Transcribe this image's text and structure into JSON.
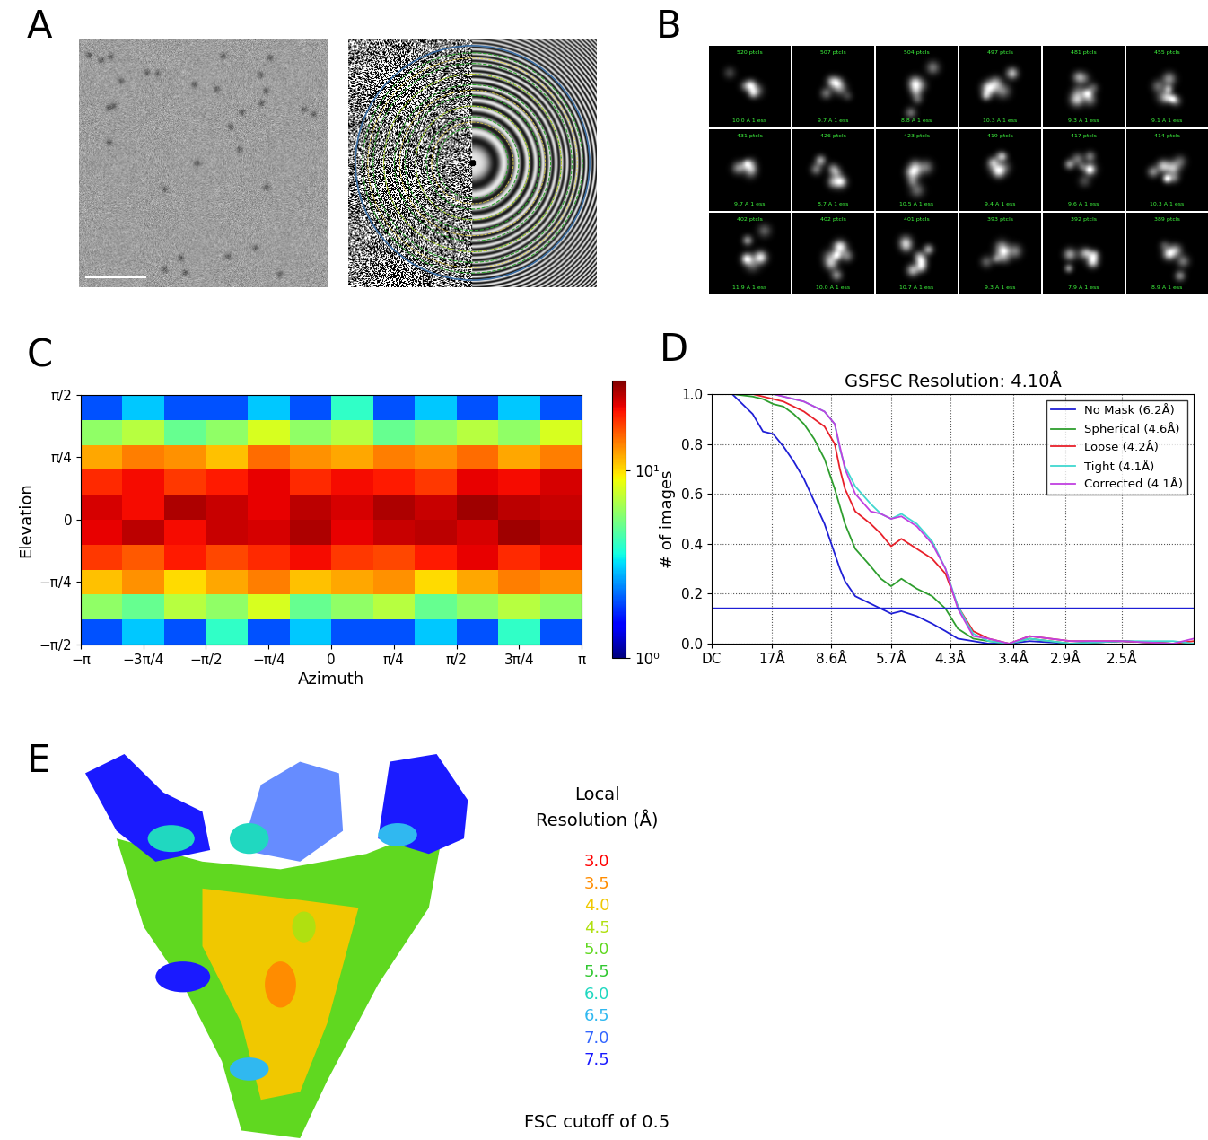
{
  "panel_labels": [
    "A",
    "B",
    "C",
    "D",
    "E"
  ],
  "class_averages": {
    "particles": [
      "520 ptcls",
      "507 ptcls",
      "504 ptcls",
      "497 ptcls",
      "481 ptcls",
      "455 ptcls",
      "431 ptcls",
      "426 ptcls",
      "423 ptcls",
      "419 ptcls",
      "417 ptcls",
      "414 ptcls",
      "402 ptcls",
      "402 ptcls",
      "401 ptcls",
      "393 ptcls",
      "392 ptcls",
      "389 ptcls"
    ],
    "ess": [
      "10.0 A 1 ess",
      "9.7 A 1 ess",
      "8.8 A 1 ess",
      "10.3 A 1 ess",
      "9.3 A 1 ess",
      "9.1 A 1 ess",
      "9.7 A 1 ess",
      "8.7 A 1 ess",
      "10.5 A 1 ess",
      "9.4 A 1 ess",
      "9.6 A 1 ess",
      "10.3 A 1 ess",
      "11.9 A 1 ess",
      "10.0 A 1 ess",
      "10.7 A 1 ess",
      "9.3 A 1 ess",
      "7.9 A 1 ess",
      "8.9 A 1 ess"
    ]
  },
  "chart_data": [
    {
      "type": "heatmap",
      "x_label": "Azimuth",
      "y_label": "Elevation",
      "xlim": [
        -3.14159,
        3.14159
      ],
      "ylim": [
        -1.5708,
        1.5708
      ],
      "xticks": [
        {
          "value": -3.14159,
          "label": "−π"
        },
        {
          "value": -2.35619,
          "label": "−3π/4"
        },
        {
          "value": -1.5708,
          "label": "−π/2"
        },
        {
          "value": -0.7854,
          "label": "−π/4"
        },
        {
          "value": 0,
          "label": "0"
        },
        {
          "value": 0.7854,
          "label": "π/4"
        },
        {
          "value": 1.5708,
          "label": "π/2"
        },
        {
          "value": 2.35619,
          "label": "3π/4"
        },
        {
          "value": 3.14159,
          "label": "π"
        }
      ],
      "yticks": [
        {
          "value": -1.5708,
          "label": "−π/2"
        },
        {
          "value": -0.7854,
          "label": "−π/4"
        },
        {
          "value": 0,
          "label": "0"
        },
        {
          "value": 0.7854,
          "label": "π/4"
        },
        {
          "value": 1.5708,
          "label": "π/2"
        }
      ],
      "log": true,
      "cells": [
        [
          2,
          3,
          2,
          4,
          2,
          3,
          2,
          2,
          3,
          2,
          4,
          2
        ],
        [
          6,
          5,
          7,
          6,
          8,
          5,
          6,
          7,
          5,
          6,
          7,
          6
        ],
        [
          11,
          13,
          10,
          12,
          14,
          11,
          12,
          13,
          10,
          12,
          14,
          13
        ],
        [
          18,
          16,
          20,
          17,
          19,
          21,
          18,
          17,
          20,
          22,
          19,
          21
        ],
        [
          22,
          25,
          21,
          24,
          23,
          26,
          22,
          24,
          25,
          23,
          27,
          25
        ],
        [
          23,
          21,
          26,
          24,
          22,
          25,
          23,
          26,
          24,
          27,
          25,
          24
        ],
        [
          19,
          21,
          18,
          20,
          22,
          19,
          21,
          20,
          18,
          22,
          21,
          23
        ],
        [
          12,
          14,
          13,
          11,
          15,
          13,
          12,
          14,
          13,
          15,
          12,
          14
        ],
        [
          6,
          7,
          5,
          6,
          8,
          6,
          7,
          5,
          6,
          7,
          6,
          8
        ],
        [
          2,
          3,
          2,
          2,
          3,
          2,
          4,
          2,
          3,
          2,
          3,
          2
        ]
      ],
      "colorbar_range": [
        1,
        30
      ],
      "colorbar_ticks": [
        {
          "value": 1,
          "label": "10⁰"
        },
        {
          "value": 10,
          "label": "10¹"
        }
      ]
    },
    {
      "type": "line",
      "title": "GSFSC Resolution: 4.10Å",
      "y_label": "# of images",
      "xlim": [
        0,
        0.47
      ],
      "ylim": [
        0,
        1
      ],
      "xticks": [
        {
          "value": 0,
          "label": "DC"
        },
        {
          "value": 0.0588,
          "label": "17Å"
        },
        {
          "value": 0.1163,
          "label": "8.6Å"
        },
        {
          "value": 0.1754,
          "label": "5.7Å"
        },
        {
          "value": 0.2326,
          "label": "4.3Å"
        },
        {
          "value": 0.2941,
          "label": "3.4Å"
        },
        {
          "value": 0.3448,
          "label": "2.9Å"
        },
        {
          "value": 0.4,
          "label": "2.5Å"
        }
      ],
      "yticks": [
        {
          "value": 0,
          "label": "0.0"
        },
        {
          "value": 0.2,
          "label": "0.2"
        },
        {
          "value": 0.4,
          "label": "0.4"
        },
        {
          "value": 0.6,
          "label": "0.6"
        },
        {
          "value": 0.8,
          "label": "0.8"
        },
        {
          "value": 1,
          "label": "1.0"
        }
      ],
      "grid": true,
      "legend": "upper right",
      "threshold": 0.143,
      "x": [
        0,
        0.02,
        0.04,
        0.05,
        0.06,
        0.07,
        0.08,
        0.09,
        0.1,
        0.11,
        0.12,
        0.125,
        0.13,
        0.14,
        0.155,
        0.165,
        0.175,
        0.185,
        0.2,
        0.215,
        0.228,
        0.24,
        0.255,
        0.27,
        0.29,
        0.31,
        0.35,
        0.4,
        0.45,
        0.47
      ],
      "series": [
        {
          "name": "No Mask (6.2Å)",
          "color": "#1f1fd6",
          "values": [
            1,
            1,
            0.92,
            0.85,
            0.84,
            0.79,
            0.73,
            0.66,
            0.57,
            0.48,
            0.36,
            0.3,
            0.25,
            0.19,
            0.16,
            0.14,
            0.12,
            0.13,
            0.11,
            0.08,
            0.05,
            0.02,
            0.01,
            0.0,
            0.0,
            0.01,
            0.0,
            0.01,
            0.0,
            0.0
          ]
        },
        {
          "name": "Spherical (4.6Å)",
          "color": "#2e9e2e",
          "values": [
            1,
            1,
            0.99,
            0.98,
            0.96,
            0.95,
            0.92,
            0.88,
            0.82,
            0.74,
            0.62,
            0.55,
            0.48,
            0.38,
            0.31,
            0.26,
            0.23,
            0.26,
            0.22,
            0.19,
            0.14,
            0.06,
            0.02,
            0.01,
            0.0,
            0.02,
            0.0,
            0.01,
            0.0,
            0.0
          ]
        },
        {
          "name": "Loose (4.2Å)",
          "color": "#e8202a",
          "values": [
            1,
            1,
            1,
            0.99,
            0.98,
            0.97,
            0.95,
            0.93,
            0.9,
            0.87,
            0.8,
            0.7,
            0.62,
            0.53,
            0.48,
            0.44,
            0.39,
            0.42,
            0.38,
            0.34,
            0.28,
            0.15,
            0.05,
            0.02,
            0.0,
            0.03,
            0.01,
            0.01,
            0.0,
            0.01
          ]
        },
        {
          "name": "Tight (4.1Å)",
          "color": "#40d8d0",
          "values": [
            1,
            1,
            1,
            1,
            1,
            0.99,
            0.98,
            0.97,
            0.95,
            0.93,
            0.88,
            0.78,
            0.71,
            0.63,
            0.56,
            0.52,
            0.5,
            0.52,
            0.48,
            0.41,
            0.3,
            0.15,
            0.04,
            0.01,
            0.0,
            0.02,
            0.0,
            0.01,
            0.01,
            0.0
          ]
        },
        {
          "name": "Corrected (4.1Å)",
          "color": "#c040e0",
          "values": [
            1,
            1,
            1,
            1,
            1,
            0.99,
            0.98,
            0.97,
            0.95,
            0.93,
            0.88,
            0.79,
            0.7,
            0.6,
            0.53,
            0.52,
            0.5,
            0.51,
            0.47,
            0.4,
            0.3,
            0.14,
            0.03,
            0.02,
            0.0,
            0.03,
            0.01,
            0.01,
            0.0,
            0.02
          ]
        }
      ]
    }
  ],
  "local_resolution": {
    "title": "Local\nResolution (Å)",
    "legend": [
      {
        "value": 3.0,
        "label": "3.0",
        "color": "#ff0000"
      },
      {
        "value": 3.5,
        "label": "3.5",
        "color": "#ff8c00"
      },
      {
        "value": 4.0,
        "label": "4.0",
        "color": "#f0c800"
      },
      {
        "value": 4.5,
        "label": "4.5",
        "color": "#b0e010"
      },
      {
        "value": 5.0,
        "label": "5.0",
        "color": "#60d820"
      },
      {
        "value": 5.5,
        "label": "5.5",
        "color": "#30c830"
      },
      {
        "value": 6.0,
        "label": "6.0",
        "color": "#20d8c0"
      },
      {
        "value": 6.5,
        "label": "6.5",
        "color": "#30b8f0"
      },
      {
        "value": 7.0,
        "label": "7.0",
        "color": "#3366ff"
      },
      {
        "value": 7.5,
        "label": "7.5",
        "color": "#1a1aff"
      }
    ],
    "note": "FSC cutoff of 0.5"
  }
}
